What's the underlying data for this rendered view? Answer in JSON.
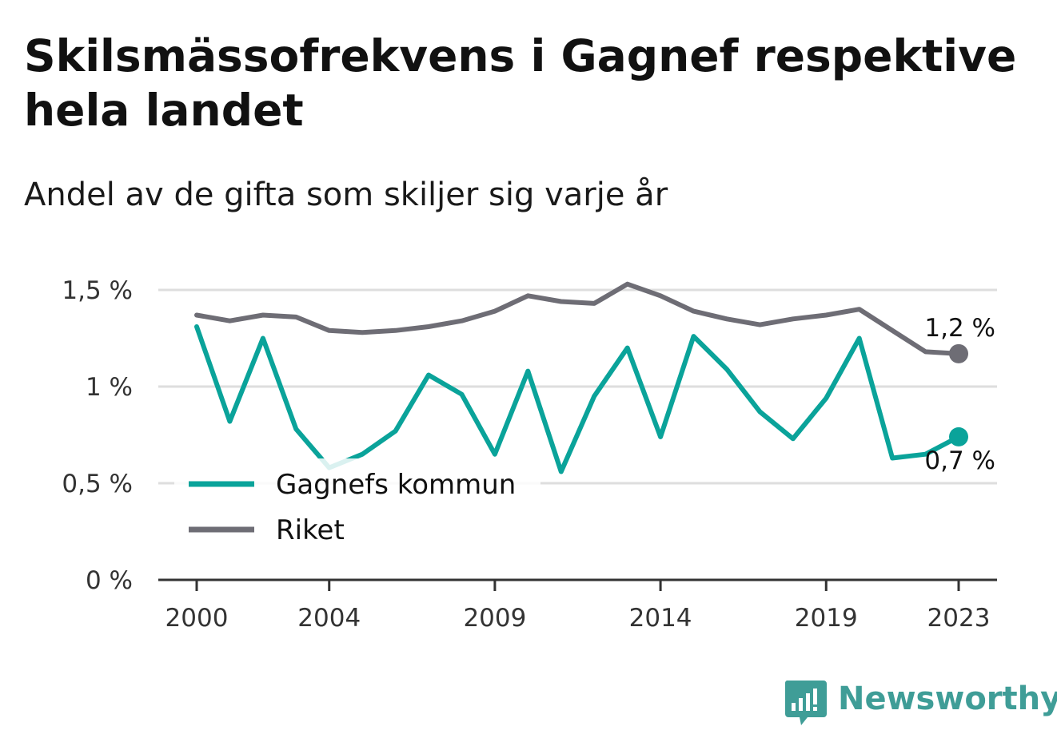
{
  "title": "Skilsmässofrekvens i Gagnef respektive hela landet",
  "subtitle": "Andel av de gifta som skiljer sig varje år",
  "brand": "Newsworthy",
  "chart_data": {
    "type": "line",
    "x": [
      2000,
      2001,
      2002,
      2003,
      2004,
      2005,
      2006,
      2007,
      2008,
      2009,
      2010,
      2011,
      2012,
      2013,
      2014,
      2015,
      2016,
      2017,
      2018,
      2019,
      2020,
      2021,
      2022,
      2023
    ],
    "series": [
      {
        "name": "Gagnefs kommun",
        "color": "#0aa39a",
        "values": [
          1.31,
          0.82,
          1.25,
          0.78,
          0.58,
          0.65,
          0.77,
          1.06,
          0.96,
          0.65,
          1.08,
          0.56,
          0.95,
          1.2,
          0.74,
          1.26,
          1.09,
          0.87,
          0.73,
          0.94,
          1.25,
          0.63,
          0.65,
          0.74
        ],
        "end_label": "0,7 %"
      },
      {
        "name": "Riket",
        "color": "#6e6d75",
        "values": [
          1.37,
          1.34,
          1.37,
          1.36,
          1.29,
          1.28,
          1.29,
          1.31,
          1.34,
          1.39,
          1.47,
          1.44,
          1.43,
          1.53,
          1.47,
          1.39,
          1.35,
          1.32,
          1.35,
          1.37,
          1.4,
          1.29,
          1.18,
          1.17
        ],
        "end_label": "1,2 %"
      }
    ],
    "x_ticks": [
      2000,
      2004,
      2009,
      2014,
      2019,
      2023
    ],
    "x_tick_labels": [
      "2000",
      "2004",
      "2009",
      "2014",
      "2019",
      "2023"
    ],
    "y_ticks": [
      0,
      0.5,
      1,
      1.5
    ],
    "y_tick_labels": [
      "0 %",
      "0,5 %",
      "1 %",
      "1,5 %"
    ],
    "ylim": [
      0,
      1.5
    ],
    "xlim": [
      2000,
      2023
    ],
    "grid": true,
    "legend_position": "bottom-left"
  }
}
